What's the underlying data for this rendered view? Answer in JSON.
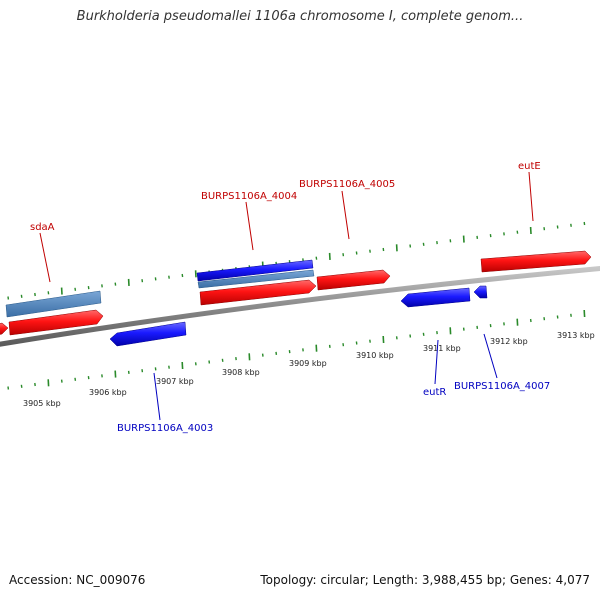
{
  "title": "Burkholderia pseudomallei 1106a chromosome I, complete genom...",
  "footer": {
    "accession": "Accession: NC_009076",
    "summary": "Topology: circular; Length: 3,988,455 bp; Genes: 4,077"
  },
  "colors": {
    "forward_gene": "#e60000",
    "reverse_gene": "#1010e0",
    "forward_label": "#c00000",
    "reverse_label": "#0000c0",
    "rna_feature": "#4a7fb5",
    "tick": "#2a8a2a",
    "backbone": "#8a8a8a"
  },
  "ticks": [
    "3905 kbp",
    "3906 kbp",
    "3907 kbp",
    "3908 kbp",
    "3909 kbp",
    "3910 kbp",
    "3911 kbp",
    "3912 kbp",
    "3913 kbp"
  ],
  "genes": {
    "sdaA": "sdaA",
    "burps4004": "BURPS1106A_4004",
    "burps4005": "BURPS1106A_4005",
    "eutE": "eutE",
    "burps4003": "BURPS1106A_4003",
    "eutR": "eutR",
    "burps4007": "BURPS1106A_4007"
  }
}
